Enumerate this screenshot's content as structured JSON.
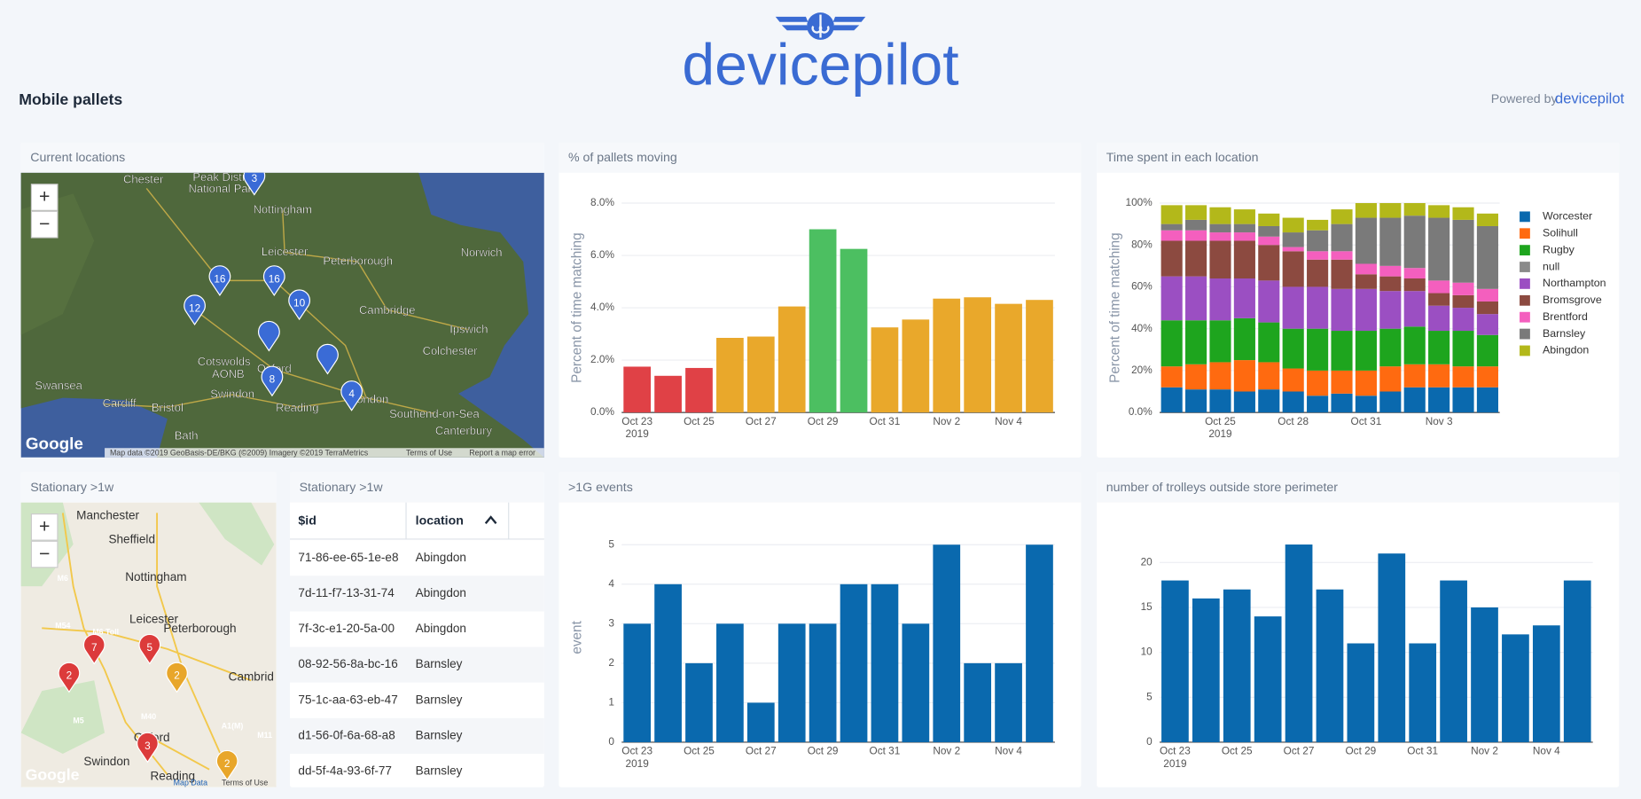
{
  "header": {
    "brand": "devicepilot",
    "title": "Mobile pallets",
    "powered_by": "Powered by",
    "powered_brand": "devicepilot"
  },
  "map_current": {
    "title": "Current locations",
    "controls": [
      "+",
      "−"
    ],
    "places": [
      "Chester",
      "Peak District",
      "National Park",
      "Nottingham",
      "Leicester",
      "Peterborough",
      "Norwich",
      "Cambridge",
      "Ipswich",
      "Colchester",
      "Cotswolds",
      "AONB",
      "Swansea",
      "Cardiff",
      "Bristol",
      "Swindon",
      "Oxford",
      "Reading",
      "London",
      "Southend-on-Sea",
      "Bath",
      "Canterbury"
    ],
    "clusters": [
      3,
      16,
      16,
      10,
      12,
      8,
      4
    ],
    "logo": "Google",
    "attribution": [
      "Map data ©2019 GeoBasis-DE/BKG (©2009) Imagery ©2019 TerraMetrics",
      "Terms of Use",
      "Report a map error"
    ]
  },
  "map_stationary": {
    "title": "Stationary >1w",
    "controls": [
      "+",
      "−"
    ],
    "places": [
      "Manchester",
      "Sheffield",
      "Nottingham",
      "Leicester",
      "Peterborough",
      "Cambrid",
      "Oxford",
      "Swindon",
      "Reading",
      "M6",
      "M54",
      "M6 Toll",
      "M5",
      "M40",
      "A1(M)",
      "M11"
    ],
    "clusters": [
      {
        "value": 7,
        "color": "#dc3b3b"
      },
      {
        "value": 5,
        "color": "#dc3b3b"
      },
      {
        "value": 2,
        "color": "#dc3b3b"
      },
      {
        "value": 2,
        "color": "#e8a62a"
      },
      {
        "value": 3,
        "color": "#dc3b3b"
      },
      {
        "value": 2,
        "color": "#e8a62a"
      }
    ],
    "logo": "Google",
    "attribution": [
      "Map Data",
      "Terms of Use"
    ]
  },
  "table": {
    "title": "Stationary >1w",
    "columns": [
      "$id",
      "location"
    ],
    "rows": [
      [
        "71-86-ee-65-1e-e8",
        "Abingdon"
      ],
      [
        "7d-11-f7-13-31-74",
        "Abingdon"
      ],
      [
        "7f-3c-e1-20-5a-00",
        "Abingdon"
      ],
      [
        "08-92-56-8a-bc-16",
        "Barnsley"
      ],
      [
        "75-1c-aa-63-eb-47",
        "Barnsley"
      ],
      [
        "d1-56-0f-6a-68-a8",
        "Barnsley"
      ],
      [
        "dd-5f-4a-93-6f-77",
        "Barnsley"
      ]
    ]
  },
  "chart_data": [
    {
      "type": "bar",
      "title": "% of pallets moving",
      "ylabel": "Percent of time matching",
      "categories": [
        "Oct 23",
        null,
        "Oct 25",
        null,
        "Oct 27",
        null,
        "Oct 29",
        null,
        "Oct 31",
        null,
        "Nov 2",
        null,
        "Nov 4",
        null
      ],
      "x_sublabel": "2019",
      "values": [
        1.75,
        1.4,
        1.7,
        2.85,
        2.9,
        4.05,
        7.0,
        6.25,
        3.25,
        3.55,
        4.35,
        4.4,
        4.15,
        4.3
      ],
      "colors": [
        "#e04146",
        "#e04146",
        "#e04146",
        "#e9a82b",
        "#e9a82b",
        "#e9a82b",
        "#4cbf61",
        "#4cbf61",
        "#e9a82b",
        "#e9a82b",
        "#e9a82b",
        "#e9a82b",
        "#e9a82b",
        "#e9a82b"
      ],
      "ylim": [
        0,
        8
      ],
      "yticks": [
        {
          "value": 0,
          "label": "0.0%"
        },
        {
          "value": 2,
          "label": "2.0%"
        },
        {
          "value": 4,
          "label": "4.0%"
        },
        {
          "value": 6,
          "label": "6.0%"
        },
        {
          "value": 8,
          "label": "8.0%"
        }
      ],
      "grid": true
    },
    {
      "type": "stacked_bar",
      "title": "Time spent in each location",
      "ylabel": "Percent of time matching",
      "categories": [
        null,
        null,
        "Oct 25",
        null,
        null,
        "Oct 28",
        null,
        null,
        "Oct 31",
        null,
        null,
        "Nov 3",
        null,
        null
      ],
      "x_sublabel": "2019",
      "series": [
        {
          "name": "Worcester",
          "color": "#0a69ae",
          "values": [
            12,
            11,
            11,
            10,
            11,
            10,
            8,
            9,
            8,
            10,
            12,
            12,
            12,
            12
          ]
        },
        {
          "name": "Solihull",
          "color": "#ff6a10",
          "values": [
            10,
            12,
            13,
            15,
            13,
            11,
            12,
            11,
            12,
            12,
            11,
            11,
            10,
            10
          ]
        },
        {
          "name": "Rugby",
          "color": "#1ea51e",
          "values": [
            22,
            21,
            20,
            20,
            19,
            19,
            20,
            19,
            19,
            18,
            18,
            16,
            17,
            15
          ]
        },
        {
          "name": "null",
          "color": "#8a8a8a",
          "values": [
            0,
            0,
            0,
            0,
            0,
            0,
            0,
            0,
            0,
            0,
            0,
            0,
            0,
            0
          ]
        },
        {
          "name": "Northampton",
          "color": "#9b4fc2",
          "values": [
            21,
            21,
            20,
            19,
            20,
            20,
            20,
            20,
            20,
            18,
            17,
            12,
            11,
            10
          ]
        },
        {
          "name": "Bromsgrove",
          "color": "#8c4a40",
          "values": [
            17,
            17,
            18,
            18,
            17,
            17,
            13,
            14,
            7,
            7,
            6,
            6,
            6,
            6
          ]
        },
        {
          "name": "Brentford",
          "color": "#f45fbe",
          "values": [
            5,
            5,
            4,
            4,
            4,
            2,
            4,
            4,
            5,
            5,
            5,
            6,
            6,
            6
          ]
        },
        {
          "name": "Barnsley",
          "color": "#7a7a7a",
          "values": [
            3,
            5,
            4,
            4,
            5,
            7,
            10,
            13,
            22,
            23,
            25,
            30,
            30,
            30
          ]
        },
        {
          "name": "Abingdon",
          "color": "#b3b81a",
          "values": [
            9,
            7,
            8,
            7,
            6,
            7,
            5,
            7,
            7,
            7,
            6,
            6,
            6,
            6
          ]
        }
      ],
      "ylim": [
        0,
        100
      ],
      "yticks": [
        {
          "value": 0,
          "label": "0.0%"
        },
        {
          "value": 20,
          "label": "20%"
        },
        {
          "value": 40,
          "label": "40%"
        },
        {
          "value": 60,
          "label": "60%"
        },
        {
          "value": 80,
          "label": "80%"
        },
        {
          "value": 100,
          "label": "100%"
        }
      ],
      "grid": true,
      "legend": "right"
    },
    {
      "type": "bar",
      "title": ">1G events",
      "ylabel": "event",
      "categories": [
        "Oct 23",
        null,
        "Oct 25",
        null,
        "Oct 27",
        null,
        "Oct 29",
        null,
        "Oct 31",
        null,
        "Nov 2",
        null,
        "Nov 4",
        null
      ],
      "x_sublabel": "2019",
      "values": [
        3,
        4,
        2,
        3,
        1,
        3,
        3,
        4,
        4,
        3,
        5,
        2,
        2,
        5
      ],
      "color": "#0a69ae",
      "ylim": [
        0,
        5.3
      ],
      "yticks": [
        0,
        1,
        2,
        3,
        4,
        5
      ],
      "grid": true
    },
    {
      "type": "bar",
      "title": "number of trolleys outside store perimeter",
      "categories": [
        "Oct 23",
        null,
        "Oct 25",
        null,
        "Oct 27",
        null,
        "Oct 29",
        null,
        "Oct 31",
        null,
        "Nov 2",
        null,
        "Nov 4",
        null
      ],
      "x_sublabel": "2019",
      "values": [
        18,
        16,
        17,
        14,
        22,
        17,
        11,
        21,
        11,
        18,
        15,
        12,
        13,
        18
      ],
      "color": "#0a69ae",
      "ylim": [
        0,
        23.3
      ],
      "yticks": [
        0,
        5,
        10,
        15,
        20
      ],
      "grid": true
    }
  ]
}
